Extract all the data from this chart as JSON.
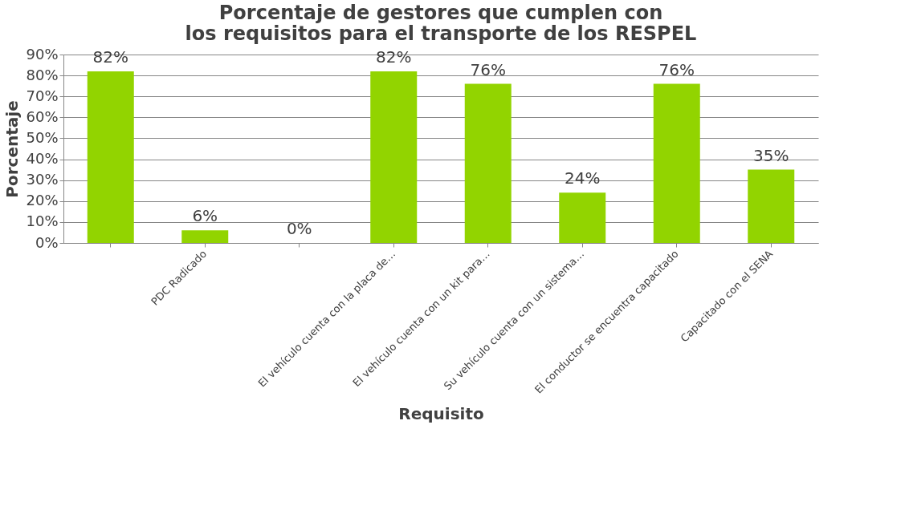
{
  "chart_data": {
    "type": "bar",
    "title": "Porcentaje de gestores que cumplen con los requisitos para el transporte de los RESPEL",
    "xlabel": "Requisito",
    "ylabel": "Porcentaje",
    "categories": [
      null,
      "PDC Radicado",
      null,
      "El vehículo cuenta con la placa de…",
      "El vehículo cuenta con un kit para…",
      "Su vehículo cuenta con un sistema…",
      "El conductor se encuentra capacitado",
      "Capacitado con el SENA"
    ],
    "values": [
      82,
      6,
      0,
      82,
      76,
      24,
      76,
      35
    ],
    "value_labels": [
      "82%",
      "6%",
      "0%",
      "82%",
      "76%",
      "24%",
      "76%",
      "35%"
    ],
    "color": "#92d400",
    "ylim": [
      0,
      90
    ],
    "yticks": [
      {
        "value": 0,
        "label": "0%"
      },
      {
        "value": 10,
        "label": "10%"
      },
      {
        "value": 20,
        "label": "20%"
      },
      {
        "value": 30,
        "label": "30%"
      },
      {
        "value": 40,
        "label": "40%"
      },
      {
        "value": 50,
        "label": "50%"
      },
      {
        "value": 60,
        "label": "60%"
      },
      {
        "value": 70,
        "label": "70%"
      },
      {
        "value": 80,
        "label": "80%"
      },
      {
        "value": 90,
        "label": "90%"
      }
    ],
    "grid": "y"
  }
}
